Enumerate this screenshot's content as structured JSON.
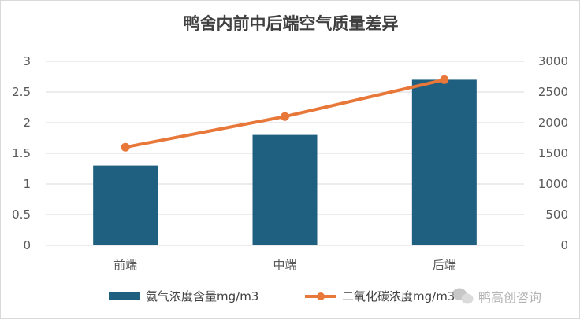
{
  "chart_data": {
    "type": "bar",
    "title": "鸭舍内前中后端空气质量差异",
    "categories": [
      "前端",
      "中端",
      "后端"
    ],
    "series": [
      {
        "name": "氨气浓度含量mg/m3",
        "type": "bar",
        "axis": "left",
        "values": [
          1.3,
          1.8,
          2.7
        ],
        "color": "#1f5f7f"
      },
      {
        "name": "二氧化碳浓度mg/m3",
        "type": "line",
        "axis": "right",
        "values": [
          1600,
          2100,
          2700
        ],
        "color": "#e8773a"
      }
    ],
    "y_left": {
      "min": 0,
      "max": 3,
      "step": 0.5,
      "ticks": [
        "0",
        "0.5",
        "1",
        "1.5",
        "2",
        "2.5",
        "3"
      ]
    },
    "y_right": {
      "min": 0,
      "max": 3000,
      "step": 500,
      "ticks": [
        "0",
        "500",
        "1000",
        "1500",
        "2000",
        "2500",
        "3000"
      ]
    },
    "grid": true,
    "legend_position": "bottom"
  },
  "watermark": {
    "text": "鸭高创咨询",
    "icon": "wechat-icon"
  },
  "colors": {
    "gridline": "#d9d9d9",
    "axis": "#d9d9d9"
  }
}
